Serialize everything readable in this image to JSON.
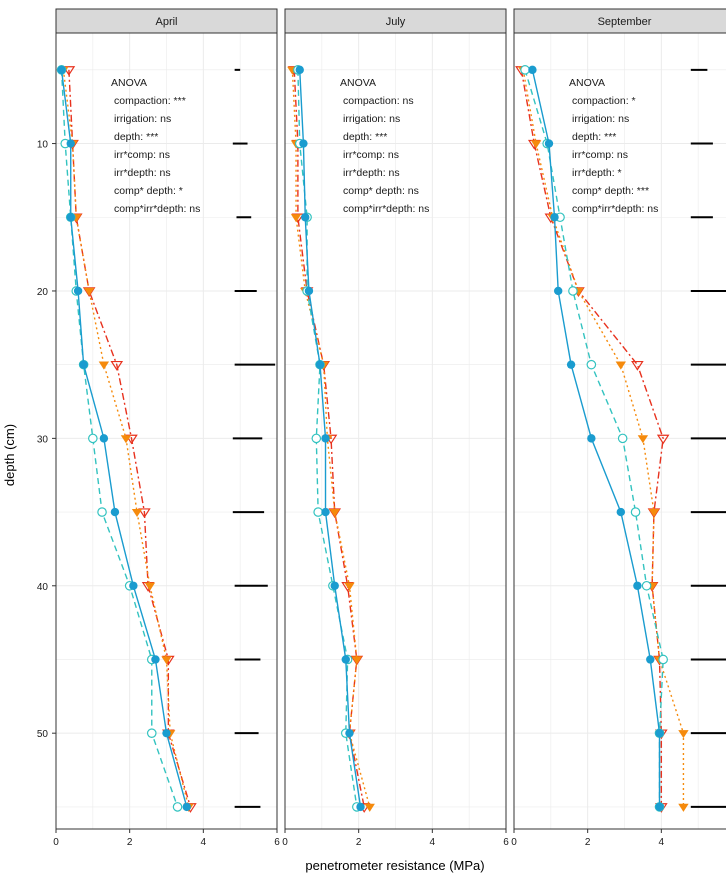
{
  "chart_data": {
    "type": "line",
    "xlabel": "penetrometer resistance (MPa)",
    "ylabel": "depth (cm)",
    "xlim": [
      0,
      6
    ],
    "ylim": [
      56.5,
      2.5
    ],
    "x_ticks": [
      0,
      2,
      4,
      6
    ],
    "y_ticks": [
      10,
      20,
      30,
      40,
      50
    ],
    "y_reversed": true,
    "grid": true,
    "series_styles": [
      {
        "id": "s1",
        "color": "#1a9ccf",
        "dash": "",
        "marker": "circle-filled"
      },
      {
        "id": "s2",
        "color": "#33c3c0",
        "dash": "6,4",
        "marker": "circle-open"
      },
      {
        "id": "s3",
        "color": "#f58a0c",
        "dash": "2,3",
        "marker": "triangle-filled"
      },
      {
        "id": "s4",
        "color": "#e8321e",
        "dash": "7,3,2,3",
        "marker": "triangle-open"
      }
    ],
    "depths": [
      5,
      10,
      15,
      20,
      25,
      30,
      35,
      40,
      45,
      50,
      55
    ],
    "panels": [
      {
        "name": "April",
        "anova": [
          "ANOVA",
          "compaction: ***",
          "irrigation: ns",
          "depth: ***",
          "irr*comp: ns",
          "irr*depth: ns",
          "comp* depth: *",
          "comp*irr*depth: ns"
        ],
        "series": [
          {
            "id": "s1",
            "values": [
              0.15,
              0.4,
              0.4,
              0.6,
              0.75,
              1.3,
              1.6,
              2.1,
              2.7,
              3.0,
              3.55
            ]
          },
          {
            "id": "s2",
            "values": [
              0.15,
              0.25,
              0.4,
              0.55,
              0.75,
              1.0,
              1.25,
              2.0,
              2.6,
              2.6,
              3.3
            ]
          },
          {
            "id": "s3",
            "values": [
              0.2,
              0.45,
              0.55,
              0.9,
              1.3,
              1.9,
              2.2,
              2.55,
              3.0,
              3.1,
              3.6
            ]
          },
          {
            "id": "s4",
            "values": [
              0.35,
              0.45,
              0.55,
              0.9,
              1.65,
              2.05,
              2.4,
              2.5,
              3.05,
              3.05,
              3.65
            ]
          }
        ],
        "lsd": [
          [
            4.85,
            5.0
          ],
          [
            4.8,
            5.2
          ],
          [
            4.9,
            5.3
          ],
          [
            4.85,
            5.45
          ],
          [
            4.85,
            5.95
          ],
          [
            4.8,
            5.6
          ],
          [
            4.8,
            5.65
          ],
          [
            4.85,
            5.75
          ],
          [
            4.85,
            5.55
          ],
          [
            4.85,
            5.5
          ],
          [
            4.85,
            5.55
          ]
        ]
      },
      {
        "name": "July",
        "anova": [
          "ANOVA",
          "compaction: ns",
          "irrigation: ns",
          "depth: ***",
          "irr*comp: ns",
          "irr*depth: ns",
          "comp* depth: ns",
          "comp*irr*depth: ns"
        ],
        "series": [
          {
            "id": "s1",
            "values": [
              0.4,
              0.5,
              0.55,
              0.65,
              0.95,
              1.1,
              1.1,
              1.35,
              1.65,
              1.75,
              2.05
            ]
          },
          {
            "id": "s2",
            "values": [
              0.35,
              0.4,
              0.6,
              0.6,
              0.95,
              0.85,
              0.9,
              1.3,
              1.7,
              1.65,
              1.95
            ]
          },
          {
            "id": "s3",
            "values": [
              0.2,
              0.3,
              0.3,
              0.55,
              1.05,
              1.15,
              1.35,
              1.75,
              1.95,
              1.75,
              2.3
            ]
          },
          {
            "id": "s4",
            "values": [
              0.25,
              0.35,
              0.35,
              0.6,
              1.05,
              1.25,
              1.35,
              1.7,
              1.95,
              1.75,
              2.15
            ]
          }
        ]
      },
      {
        "name": "September",
        "anova": [
          "ANOVA",
          "compaction: *",
          "irrigation: ns",
          "depth: ***",
          "irr*comp: ns",
          "irr*depth: *",
          "comp* depth: ***",
          "comp*irr*depth: ns"
        ],
        "series": [
          {
            "id": "s1",
            "values": [
              0.5,
              0.95,
              1.1,
              1.2,
              1.55,
              2.1,
              2.9,
              3.35,
              3.7,
              3.95,
              3.95
            ]
          },
          {
            "id": "s2",
            "values": [
              0.3,
              0.9,
              1.25,
              1.6,
              2.1,
              2.95,
              3.3,
              3.6,
              4.05,
              3.95,
              3.95
            ]
          },
          {
            "id": "s3",
            "values": [
              0.25,
              0.6,
              1.05,
              1.75,
              2.9,
              3.5,
              3.8,
              3.75,
              3.95,
              4.6,
              4.6
            ]
          },
          {
            "id": "s4",
            "values": [
              0.2,
              0.55,
              1.0,
              1.75,
              3.35,
              4.05,
              3.8,
              3.75,
              3.95,
              4.0,
              4.0
            ]
          }
        ],
        "lsd": [
          [
            4.8,
            5.25
          ],
          [
            4.8,
            5.4
          ],
          [
            4.8,
            5.4
          ],
          [
            4.8,
            5.8
          ],
          [
            4.8,
            6.0
          ],
          [
            4.8,
            5.95
          ],
          [
            4.8,
            5.85
          ],
          [
            4.8,
            5.85
          ],
          [
            4.8,
            5.85
          ],
          [
            4.8,
            5.85
          ],
          [
            4.8,
            5.85
          ]
        ]
      }
    ]
  }
}
